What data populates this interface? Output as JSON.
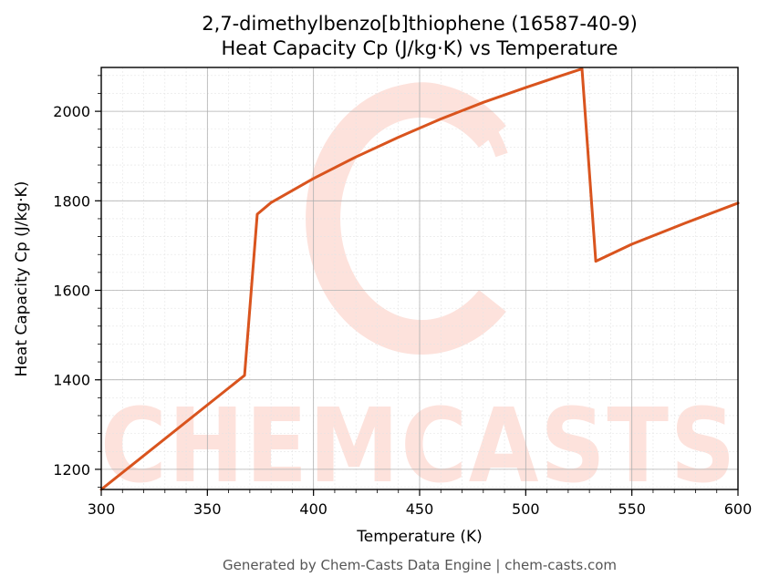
{
  "chart_data": {
    "type": "line",
    "title_line1": "2,7-dimethylbenzo[b]thiophene (16587-40-9)",
    "title_line2": "Heat Capacity Cp (J/kg·K) vs Temperature",
    "xlabel": "Temperature (K)",
    "ylabel": "Heat Capacity Cp (J/kg·K)",
    "xlim": [
      300,
      600
    ],
    "ylim": [
      1155,
      2098
    ],
    "xticks": [
      300,
      350,
      400,
      450,
      500,
      550,
      600
    ],
    "yticks": [
      1200,
      1400,
      1600,
      1800,
      2000
    ],
    "grid": true,
    "series": [
      {
        "color": "#d9541e",
        "x": [
          300,
          367.5,
          373.5,
          380,
          400,
          420,
          440,
          460,
          480,
          500,
          515,
          526.5,
          533,
          550,
          575,
          600
        ],
        "y": [
          1155,
          1410,
          1770,
          1796,
          1850,
          1898,
          1942,
          1983,
          2020,
          2053,
          2077,
          2095,
          1665,
          1703,
          1750,
          1795
        ]
      }
    ]
  },
  "watermark": {
    "text": "CHEMCASTS",
    "color": "#fde2dc"
  },
  "footer": "Generated by Chem-Casts Data Engine | chem-casts.com"
}
